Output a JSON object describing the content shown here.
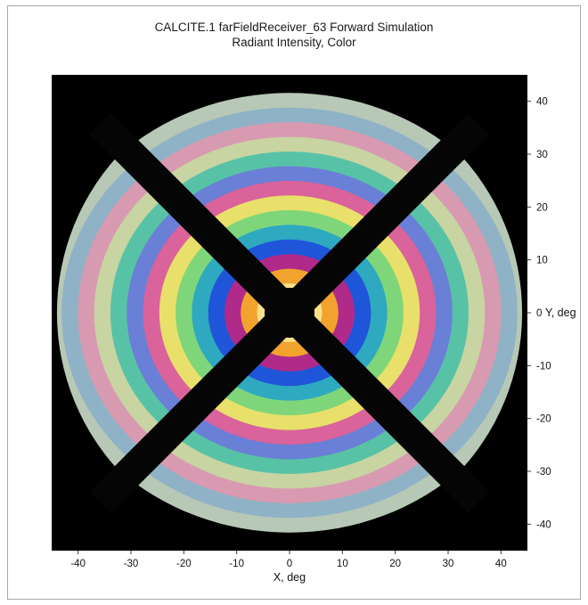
{
  "chart_data": {
    "type": "heatmap",
    "title": "CALCITE.1 farFieldReceiver_63 Forward Simulation",
    "subtitle": "Radiant Intensity, Color",
    "xlabel": "X, deg",
    "ylabel": "Y, deg",
    "xlim": [
      -45,
      45
    ],
    "ylim": [
      -45,
      45
    ],
    "x_ticks": [
      -40,
      -30,
      -20,
      -10,
      0,
      10,
      20,
      30,
      40
    ],
    "y_ticks": [
      40,
      30,
      20,
      10,
      0,
      -10,
      -20,
      -30,
      -40
    ],
    "y_tick_labels": [
      "40",
      "30",
      "20",
      "10",
      "0",
      "-10",
      "-20",
      "-30",
      "-40"
    ],
    "x_tick_labels": [
      "-40",
      "-30",
      "-20",
      "-10",
      "0",
      "10",
      "20",
      "30",
      "40"
    ],
    "background_color": "#000000",
    "pattern": {
      "description_free": true,
      "field_radius_deg": 44,
      "dark_cross_angles_deg": [
        45,
        135
      ],
      "fringe_colors": [
        "#f4f6ff",
        "#fbe08a",
        "#f2a32e",
        "#b02a8a",
        "#1f55d8",
        "#2ea9c0",
        "#7fd67a",
        "#e8e06a",
        "#d9639a",
        "#6a7fd6",
        "#58c2a6",
        "#c8d4a2",
        "#d89ab0",
        "#8fb2c6",
        "#b8c8b6"
      ]
    }
  }
}
